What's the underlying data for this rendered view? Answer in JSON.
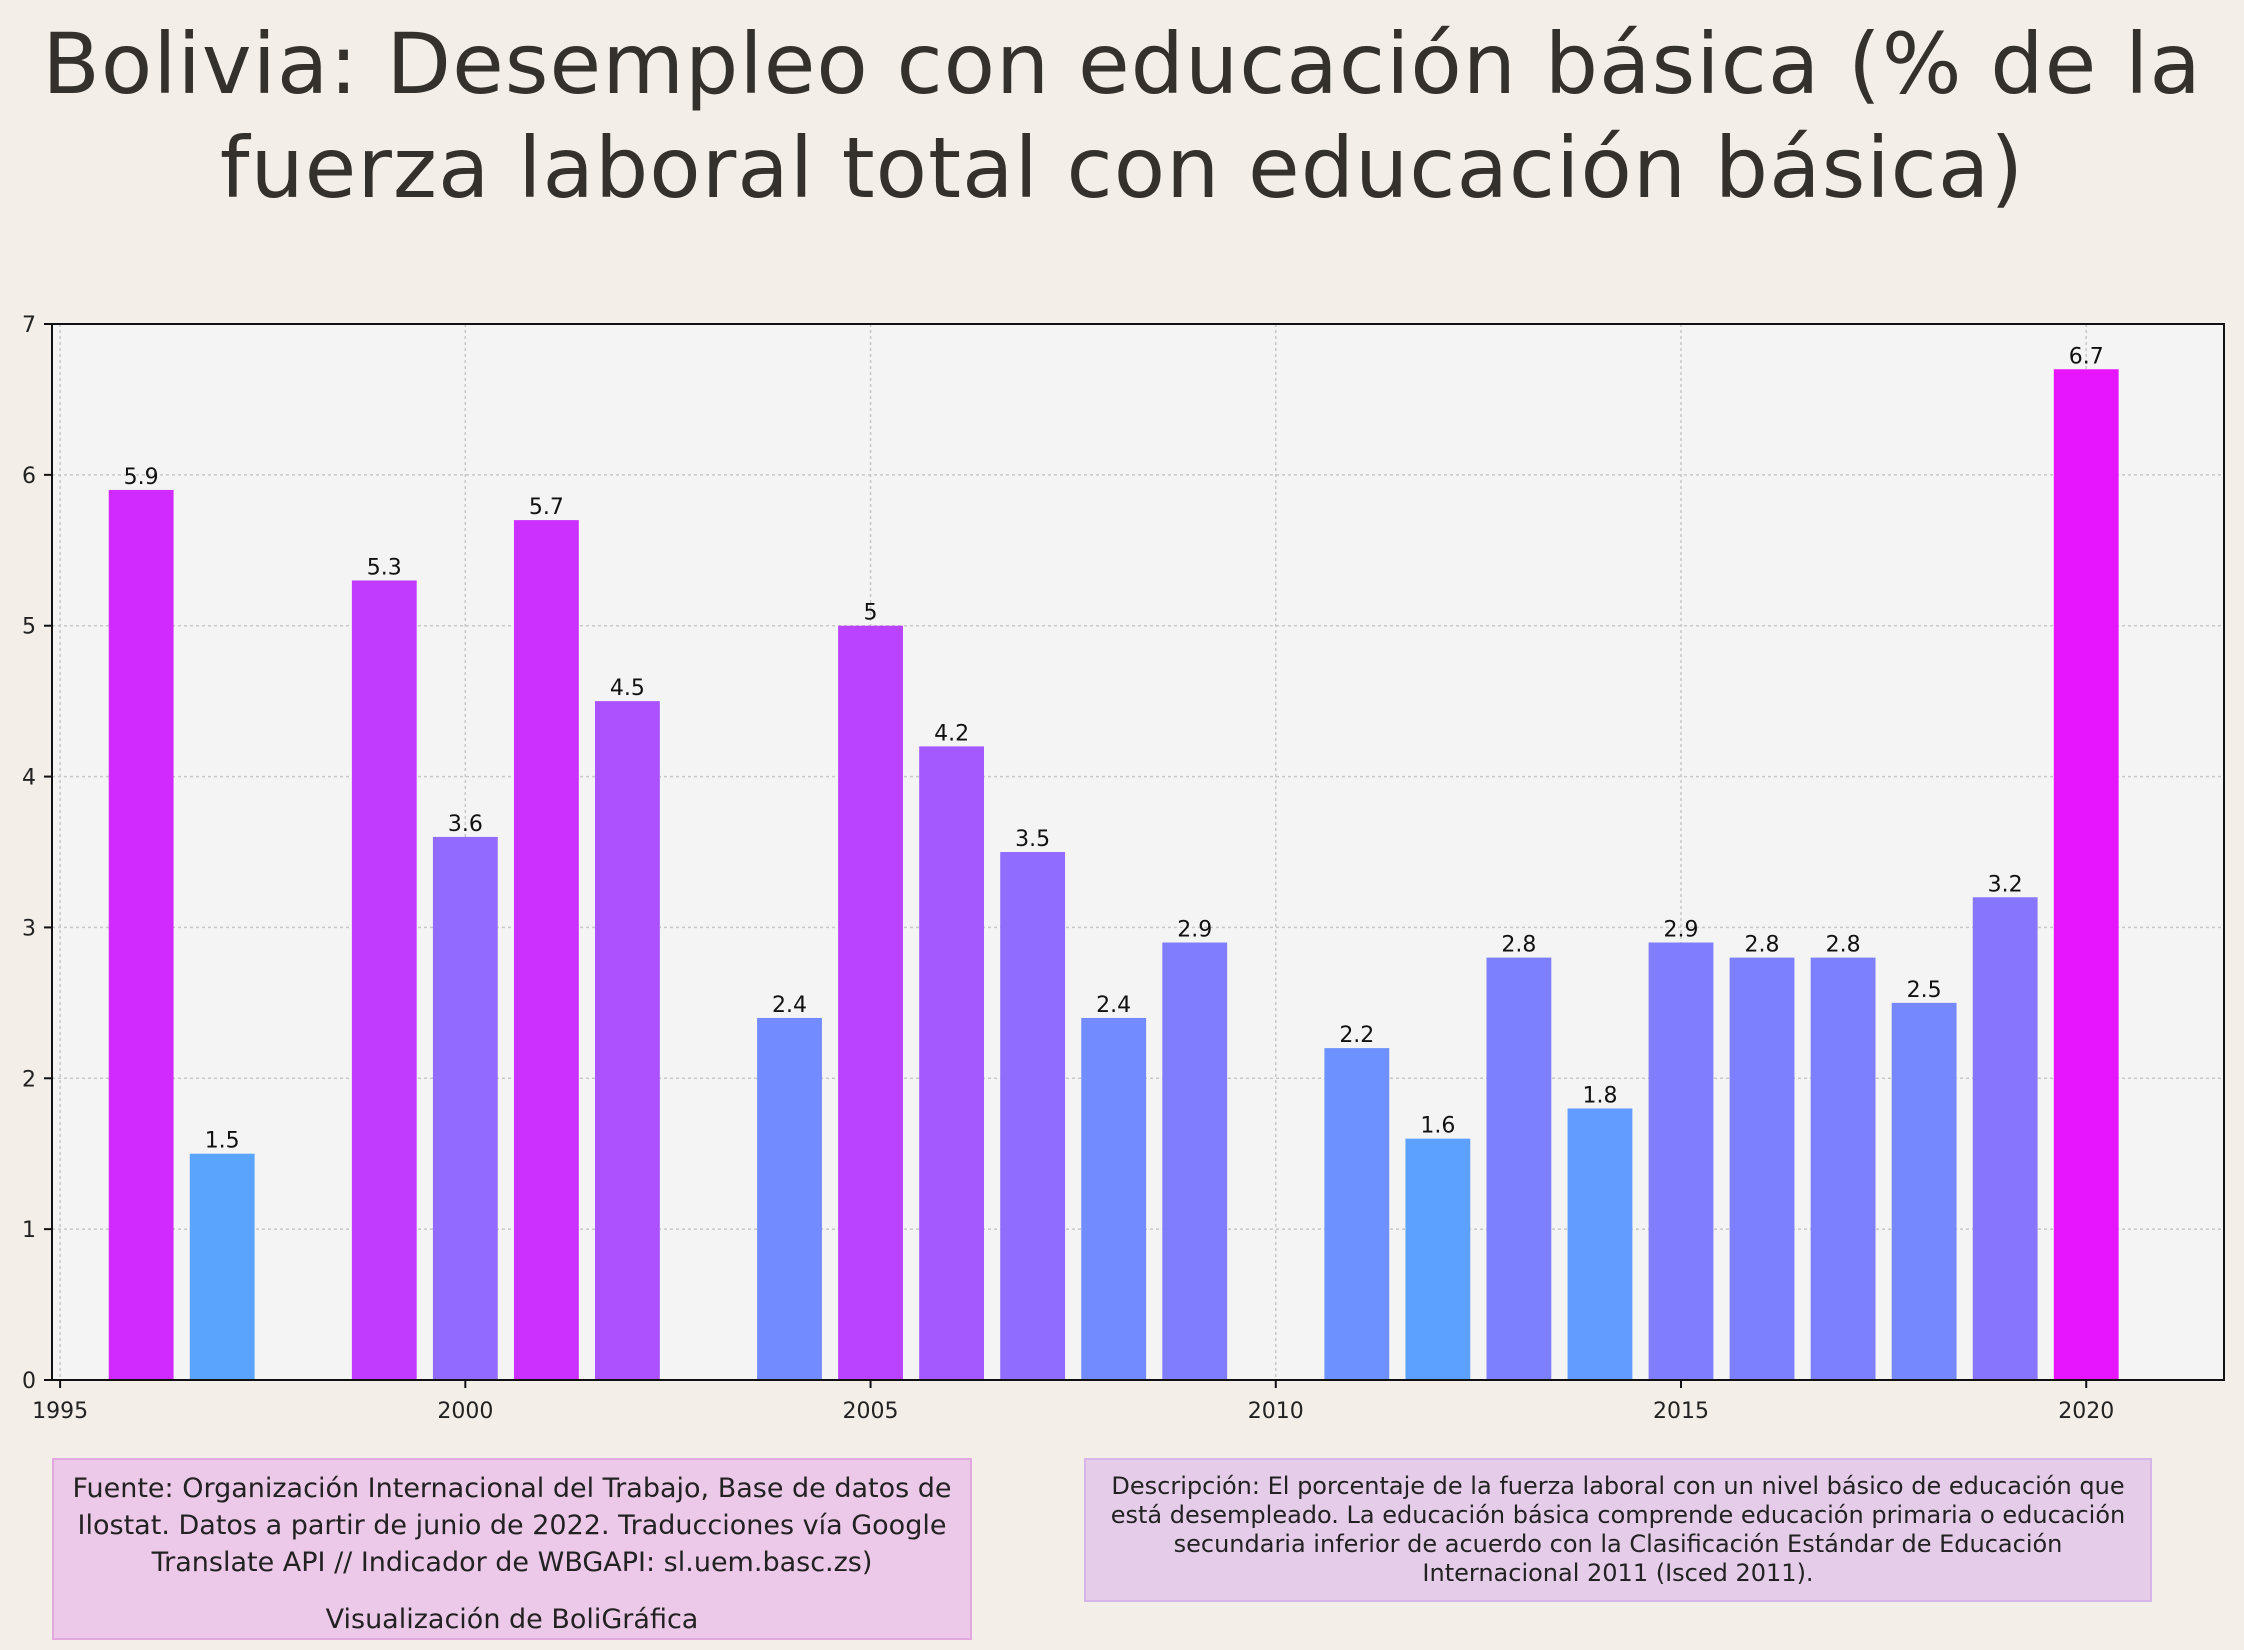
{
  "title": "Bolivia:  Desempleo con educación básica (% de la fuerza laboral total con educación básica)",
  "source_text": "Fuente: Organización Internacional del Trabajo, Base de datos de Ilostat. Datos a partir de junio de 2022. Traducciones vía Google Translate API // Indicador de WBGAPI: sl.uem.basc.zs)",
  "credit_text": "Visualización de BoliGráfica",
  "description_text": "Descripción: El porcentaje de la fuerza laboral con un nivel básico de educación que está desempleado. La educación básica comprende educación primaria o educación secundaria inferior de acuerdo con la Clasificación Estándar de Educación Internacional 2011 (Isced 2011).",
  "colors": {
    "background": "#f3efe8",
    "plot_background": "#f5f4f4",
    "low_value": "#5aa4fe",
    "high_value": "#e714fe"
  },
  "chart_data": {
    "type": "bar",
    "x": [
      1996,
      1997,
      1999,
      2000,
      2001,
      2002,
      2004,
      2005,
      2006,
      2007,
      2008,
      2009,
      2011,
      2012,
      2013,
      2014,
      2015,
      2016,
      2017,
      2018,
      2019,
      2020
    ],
    "values": [
      5.9,
      1.5,
      5.3,
      3.6,
      5.7,
      4.5,
      2.4,
      5,
      4.2,
      3.5,
      2.4,
      2.9,
      2.2,
      1.6,
      2.8,
      1.8,
      2.9,
      2.8,
      2.8,
      2.5,
      3.2,
      6.7
    ],
    "data_labels": [
      "5.9",
      "1.5",
      "5.3",
      "3.6",
      "5.7",
      "4.5",
      "2.4",
      "5",
      "4.2",
      "3.5",
      "2.4",
      "2.9",
      "2.2",
      "1.6",
      "2.8",
      "1.8",
      "2.9",
      "2.8",
      "2.8",
      "2.5",
      "3.2",
      "6.7"
    ],
    "xlim": [
      1994.9,
      2021.7
    ],
    "ylim": [
      0,
      7
    ],
    "x_ticks": [
      1995,
      2000,
      2005,
      2010,
      2015,
      2020
    ],
    "y_ticks": [
      0,
      1,
      2,
      3,
      4,
      5,
      6,
      7
    ],
    "xlabel": "",
    "ylabel": "",
    "grid": true,
    "legend": "none"
  }
}
